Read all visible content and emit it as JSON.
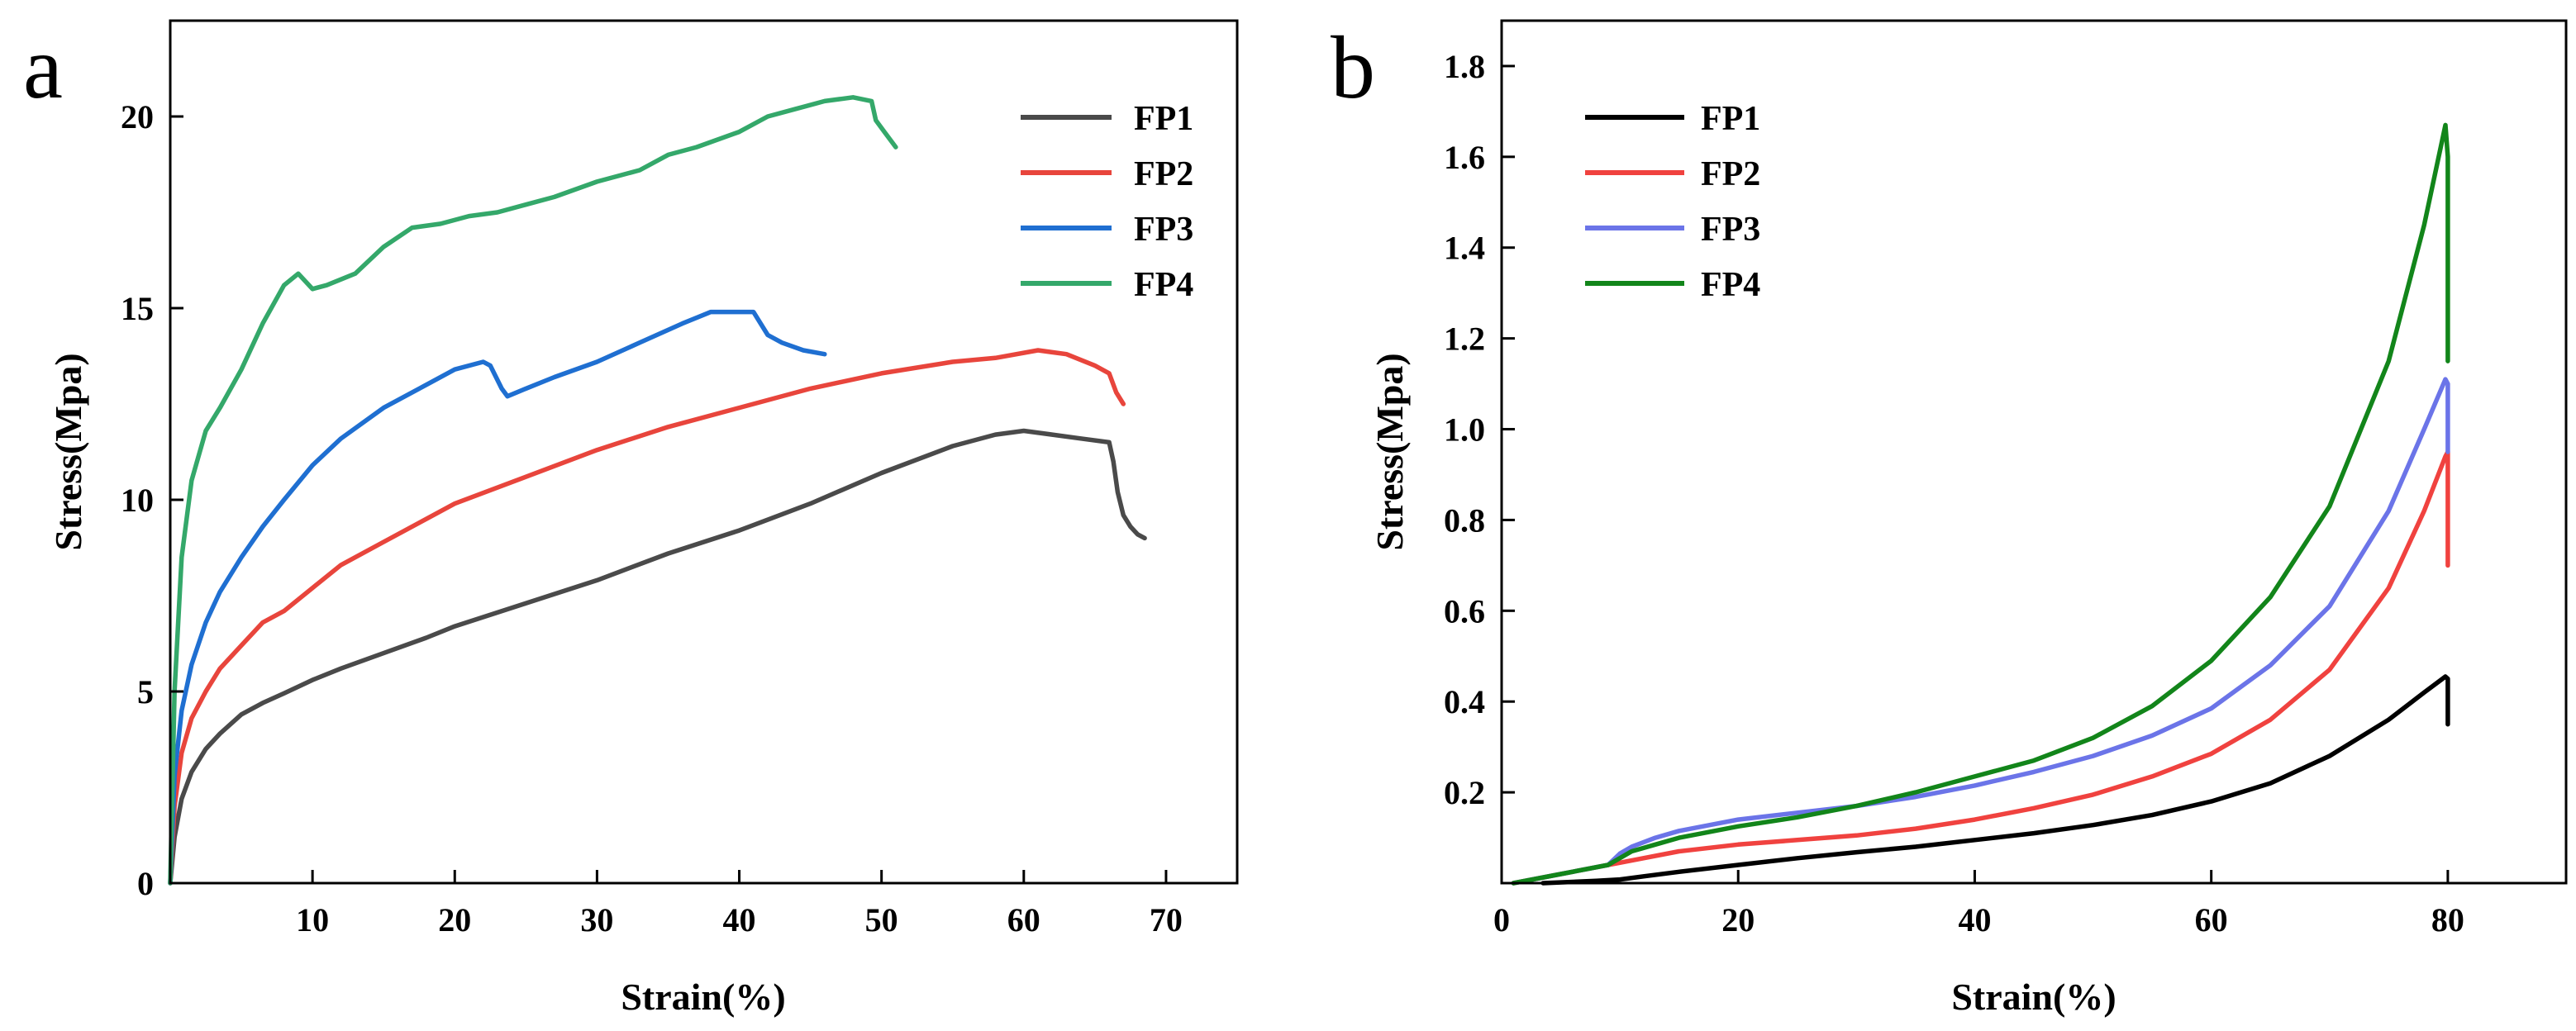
{
  "colors": {
    "fp1_a": "#4a4a4a",
    "fp2_a": "#e8453c",
    "fp3_a": "#1f6fd1",
    "fp4_a": "#34a86a",
    "fp1_b": "#000000",
    "fp2_b": "#f0423f",
    "fp3_b": "#6b74e8",
    "fp4_b": "#12851a"
  },
  "chart_data": [
    {
      "panel_label": "a",
      "type": "line",
      "title": "",
      "xlabel": "Strain(%)",
      "ylabel": "Stress(Mpa)",
      "xlim": [
        0,
        75
      ],
      "ylim": [
        0,
        22.5
      ],
      "xticks": [
        10,
        20,
        30,
        40,
        50,
        60,
        70
      ],
      "yticks": [
        0,
        5,
        10,
        15,
        20
      ],
      "grid": false,
      "legend_position": "top-right",
      "series": [
        {
          "name": "FP1",
          "color": "#4a4a4a",
          "x": [
            0,
            0.3,
            0.8,
            1.5,
            2.5,
            3.5,
            5,
            6.5,
            8,
            10,
            12,
            15,
            18,
            20,
            25,
            30,
            35,
            40,
            45,
            50,
            55,
            58,
            60,
            62,
            64,
            66,
            66.3,
            66.6,
            67,
            67.5,
            68,
            68.5
          ],
          "y": [
            0,
            1.2,
            2.2,
            2.9,
            3.5,
            3.9,
            4.4,
            4.7,
            4.95,
            5.3,
            5.6,
            6.0,
            6.4,
            6.7,
            7.3,
            7.9,
            8.6,
            9.2,
            9.9,
            10.7,
            11.4,
            11.7,
            11.8,
            11.7,
            11.6,
            11.5,
            11.0,
            10.2,
            9.6,
            9.3,
            9.1,
            9.0
          ]
        },
        {
          "name": "FP2",
          "color": "#e8453c",
          "x": [
            0,
            0.3,
            0.8,
            1.5,
            2.5,
            3.5,
            5,
            6.5,
            8,
            10,
            12,
            15,
            18,
            20,
            25,
            30,
            35,
            40,
            45,
            50,
            55,
            58,
            61,
            63,
            65,
            66,
            66.5,
            67
          ],
          "y": [
            0,
            2.0,
            3.4,
            4.3,
            5.0,
            5.6,
            6.2,
            6.8,
            7.1,
            7.7,
            8.3,
            8.9,
            9.5,
            9.9,
            10.6,
            11.3,
            11.9,
            12.4,
            12.9,
            13.3,
            13.6,
            13.7,
            13.9,
            13.8,
            13.5,
            13.3,
            12.8,
            12.5
          ]
        },
        {
          "name": "FP3",
          "color": "#1f6fd1",
          "x": [
            0,
            0.3,
            0.8,
            1.5,
            2.5,
            3.5,
            5,
            6.5,
            8,
            10,
            12,
            15,
            18,
            20,
            22,
            22.5,
            23.3,
            23.7,
            25,
            27,
            30,
            33,
            36,
            38,
            41,
            42,
            43,
            44.5,
            46
          ],
          "y": [
            0,
            2.8,
            4.5,
            5.7,
            6.8,
            7.6,
            8.5,
            9.3,
            10.0,
            10.9,
            11.6,
            12.4,
            13.0,
            13.4,
            13.6,
            13.5,
            12.9,
            12.7,
            12.9,
            13.2,
            13.6,
            14.1,
            14.6,
            14.9,
            14.9,
            14.3,
            14.1,
            13.9,
            13.8
          ]
        },
        {
          "name": "FP4",
          "color": "#34a86a",
          "x": [
            0,
            0.3,
            0.8,
            1.5,
            2.5,
            3.5,
            5,
            6.5,
            8,
            9,
            10,
            11,
            13,
            15,
            17,
            19,
            21,
            23,
            25,
            27,
            30,
            33,
            35,
            37,
            40,
            42,
            44,
            46,
            48,
            49.3,
            49.6,
            50.2,
            51
          ],
          "y": [
            0,
            5.0,
            8.5,
            10.5,
            11.8,
            12.4,
            13.4,
            14.6,
            15.6,
            15.9,
            15.5,
            15.6,
            15.9,
            16.6,
            17.1,
            17.2,
            17.4,
            17.5,
            17.7,
            17.9,
            18.3,
            18.6,
            19.0,
            19.2,
            19.6,
            20.0,
            20.2,
            20.4,
            20.5,
            20.4,
            19.9,
            19.6,
            19.2
          ]
        }
      ]
    },
    {
      "panel_label": "b",
      "type": "line",
      "title": "",
      "xlabel": "Strain(%)",
      "ylabel": "Stress(Mpa)",
      "xlim": [
        0,
        90
      ],
      "ylim": [
        0,
        1.9
      ],
      "xticks": [
        0,
        20,
        40,
        60,
        80
      ],
      "yticks": [
        0.2,
        0.4,
        0.6,
        0.8,
        1.0,
        1.2,
        1.4,
        1.6,
        1.8
      ],
      "grid": false,
      "legend_position": "top-left",
      "series": [
        {
          "name": "FP1",
          "color": "#000000",
          "x": [
            3.5,
            8,
            10,
            12,
            15,
            20,
            25,
            30,
            35,
            40,
            45,
            50,
            55,
            60,
            65,
            70,
            75,
            78,
            79.8,
            80,
            80,
            80
          ],
          "y": [
            0,
            0.005,
            0.008,
            0.015,
            0.025,
            0.04,
            0.055,
            0.068,
            0.08,
            0.095,
            0.11,
            0.128,
            0.15,
            0.18,
            0.22,
            0.28,
            0.36,
            0.42,
            0.455,
            0.45,
            0.4,
            0.35
          ]
        },
        {
          "name": "FP2",
          "color": "#f0423f",
          "x": [
            1,
            5,
            10,
            15,
            20,
            25,
            30,
            35,
            40,
            45,
            50,
            55,
            60,
            65,
            70,
            75,
            78,
            79.8,
            80,
            80,
            80
          ],
          "y": [
            0,
            0.02,
            0.045,
            0.07,
            0.085,
            0.095,
            0.105,
            0.12,
            0.14,
            0.165,
            0.195,
            0.235,
            0.285,
            0.36,
            0.47,
            0.65,
            0.82,
            0.94,
            0.95,
            0.8,
            0.7
          ]
        },
        {
          "name": "FP3",
          "color": "#6b74e8",
          "x": [
            1,
            5,
            9,
            10,
            11,
            13,
            15,
            20,
            25,
            30,
            35,
            40,
            45,
            50,
            55,
            60,
            65,
            70,
            75,
            78,
            79.8,
            80,
            80,
            80
          ],
          "y": [
            0,
            0.02,
            0.04,
            0.065,
            0.08,
            0.1,
            0.115,
            0.14,
            0.155,
            0.17,
            0.19,
            0.215,
            0.245,
            0.28,
            0.325,
            0.385,
            0.48,
            0.61,
            0.82,
            1.0,
            1.11,
            1.1,
            1.0,
            0.95
          ]
        },
        {
          "name": "FP4",
          "color": "#12851a",
          "x": [
            1,
            5,
            9,
            10,
            11,
            13,
            15,
            20,
            25,
            30,
            35,
            40,
            45,
            50,
            55,
            60,
            65,
            70,
            75,
            78,
            79.8,
            80,
            80,
            80
          ],
          "y": [
            0,
            0.02,
            0.04,
            0.055,
            0.07,
            0.085,
            0.1,
            0.125,
            0.145,
            0.17,
            0.2,
            0.235,
            0.27,
            0.32,
            0.39,
            0.49,
            0.63,
            0.83,
            1.15,
            1.45,
            1.67,
            1.6,
            1.3,
            1.15
          ]
        }
      ]
    }
  ]
}
